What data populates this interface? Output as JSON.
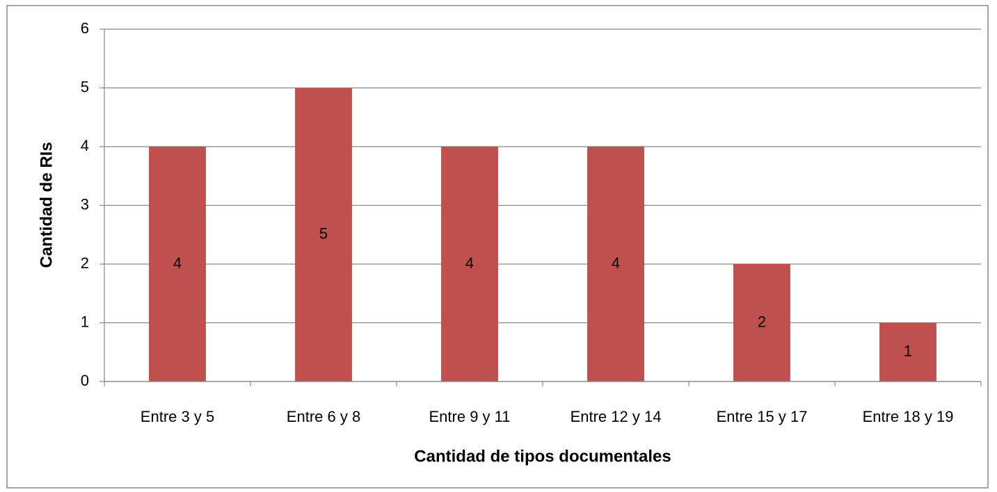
{
  "chart_data": {
    "type": "bar",
    "x_label": "Cantidad de tipos documentales",
    "y_label": "Cantidad de RIs",
    "categories": [
      "Entre 3 y 5",
      "Entre 6 y 8",
      "Entre 9 y 11",
      "Entre 12 y 14",
      "Entre 15 y 17",
      "Entre 18 y 19"
    ],
    "values": [
      4,
      5,
      4,
      4,
      2,
      1
    ],
    "color": "#c0504d",
    "ylim": [
      0,
      6
    ],
    "yticks": [
      0,
      1,
      2,
      3,
      4,
      5,
      6
    ],
    "grid": true
  }
}
